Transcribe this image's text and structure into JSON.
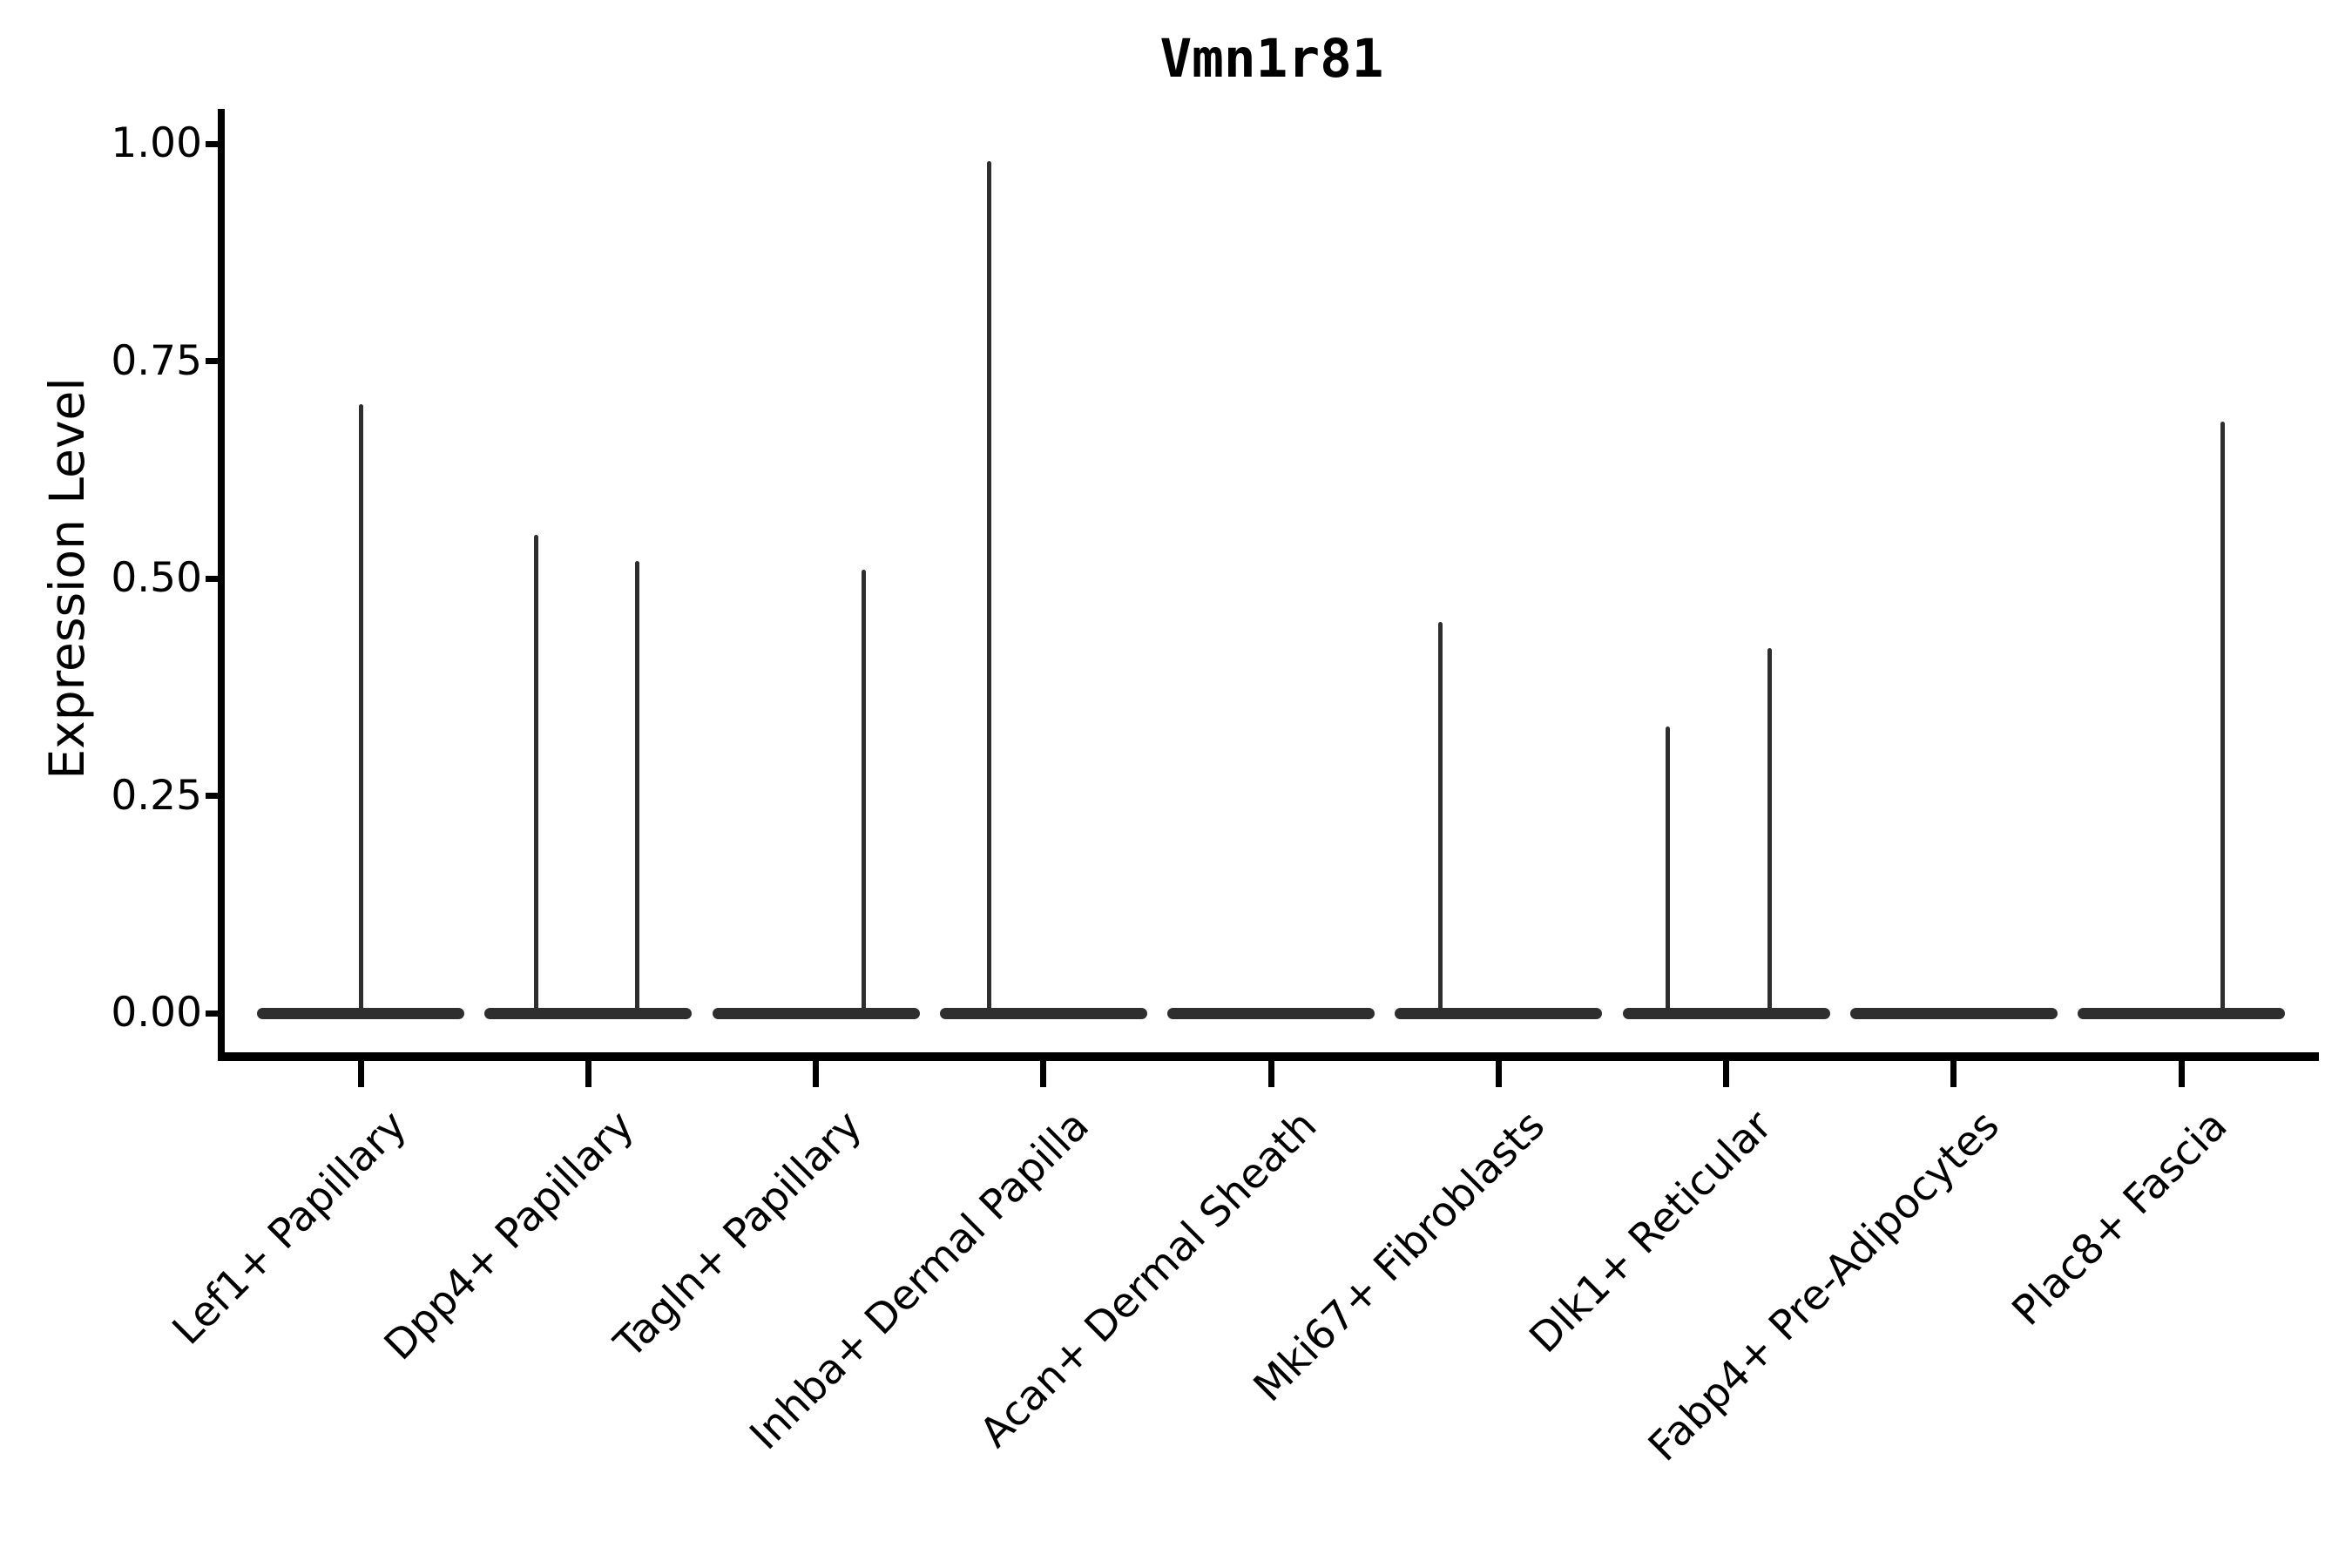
{
  "figure": {
    "background": "#ffffff"
  },
  "chart_data": {
    "type": "violin",
    "title": "Vmn1r81",
    "ylabel": "Expression Level",
    "xlabel": "",
    "grid": false,
    "legend_position": "none",
    "axis_color": "#000000",
    "violin_color": "#2e2e2e",
    "ylim": [
      -0.05,
      1.04
    ],
    "yticks": [
      {
        "label": "0.00",
        "value": 0.0
      },
      {
        "label": "0.25",
        "value": 0.25
      },
      {
        "label": "0.50",
        "value": 0.5
      },
      {
        "label": "0.75",
        "value": 0.75
      },
      {
        "label": "1.00",
        "value": 1.0
      }
    ],
    "categories": [
      "Lef1+ Papillary",
      "Dpp4+ Papillary",
      "Tagln+ Papillary",
      "Inhba+ Dermal Papilla",
      "Acan+ Dermal Sheath",
      "Mki67+ Fibroblasts",
      "Dlk1+ Reticular",
      "Fabp4+ Pre-Adipocytes",
      "Plac8+ Fascia"
    ],
    "violins": [
      {
        "category": "Lef1+ Papillary",
        "baseline_value": 0.0,
        "spikes": [
          {
            "offset_frac": 0.0,
            "value": 0.7
          }
        ]
      },
      {
        "category": "Dpp4+ Papillary",
        "baseline_value": 0.0,
        "spikes": [
          {
            "offset_frac": -0.227,
            "value": 0.55
          },
          {
            "offset_frac": 0.217,
            "value": 0.52
          }
        ]
      },
      {
        "category": "Tagln+ Papillary",
        "baseline_value": 0.0,
        "spikes": [
          {
            "offset_frac": 0.212,
            "value": 0.51
          }
        ]
      },
      {
        "category": "Inhba+ Dermal Papilla",
        "baseline_value": 0.0,
        "spikes": [
          {
            "offset_frac": -0.237,
            "value": 0.98
          }
        ]
      },
      {
        "category": "Acan+ Dermal Sheath",
        "baseline_value": 0.0,
        "spikes": []
      },
      {
        "category": "Mki67+ Fibroblasts",
        "baseline_value": 0.0,
        "spikes": [
          {
            "offset_frac": -0.254,
            "value": 0.45
          }
        ]
      },
      {
        "category": "Dlk1+ Reticular",
        "baseline_value": 0.0,
        "spikes": [
          {
            "offset_frac": -0.258,
            "value": 0.33
          },
          {
            "offset_frac": 0.193,
            "value": 0.42
          }
        ]
      },
      {
        "category": "Fabp4+ Pre-Adipocytes",
        "baseline_value": 0.0,
        "spikes": []
      },
      {
        "category": "Plac8+ Fascia",
        "baseline_value": 0.0,
        "spikes": [
          {
            "offset_frac": 0.18,
            "value": 0.68
          }
        ]
      }
    ]
  }
}
